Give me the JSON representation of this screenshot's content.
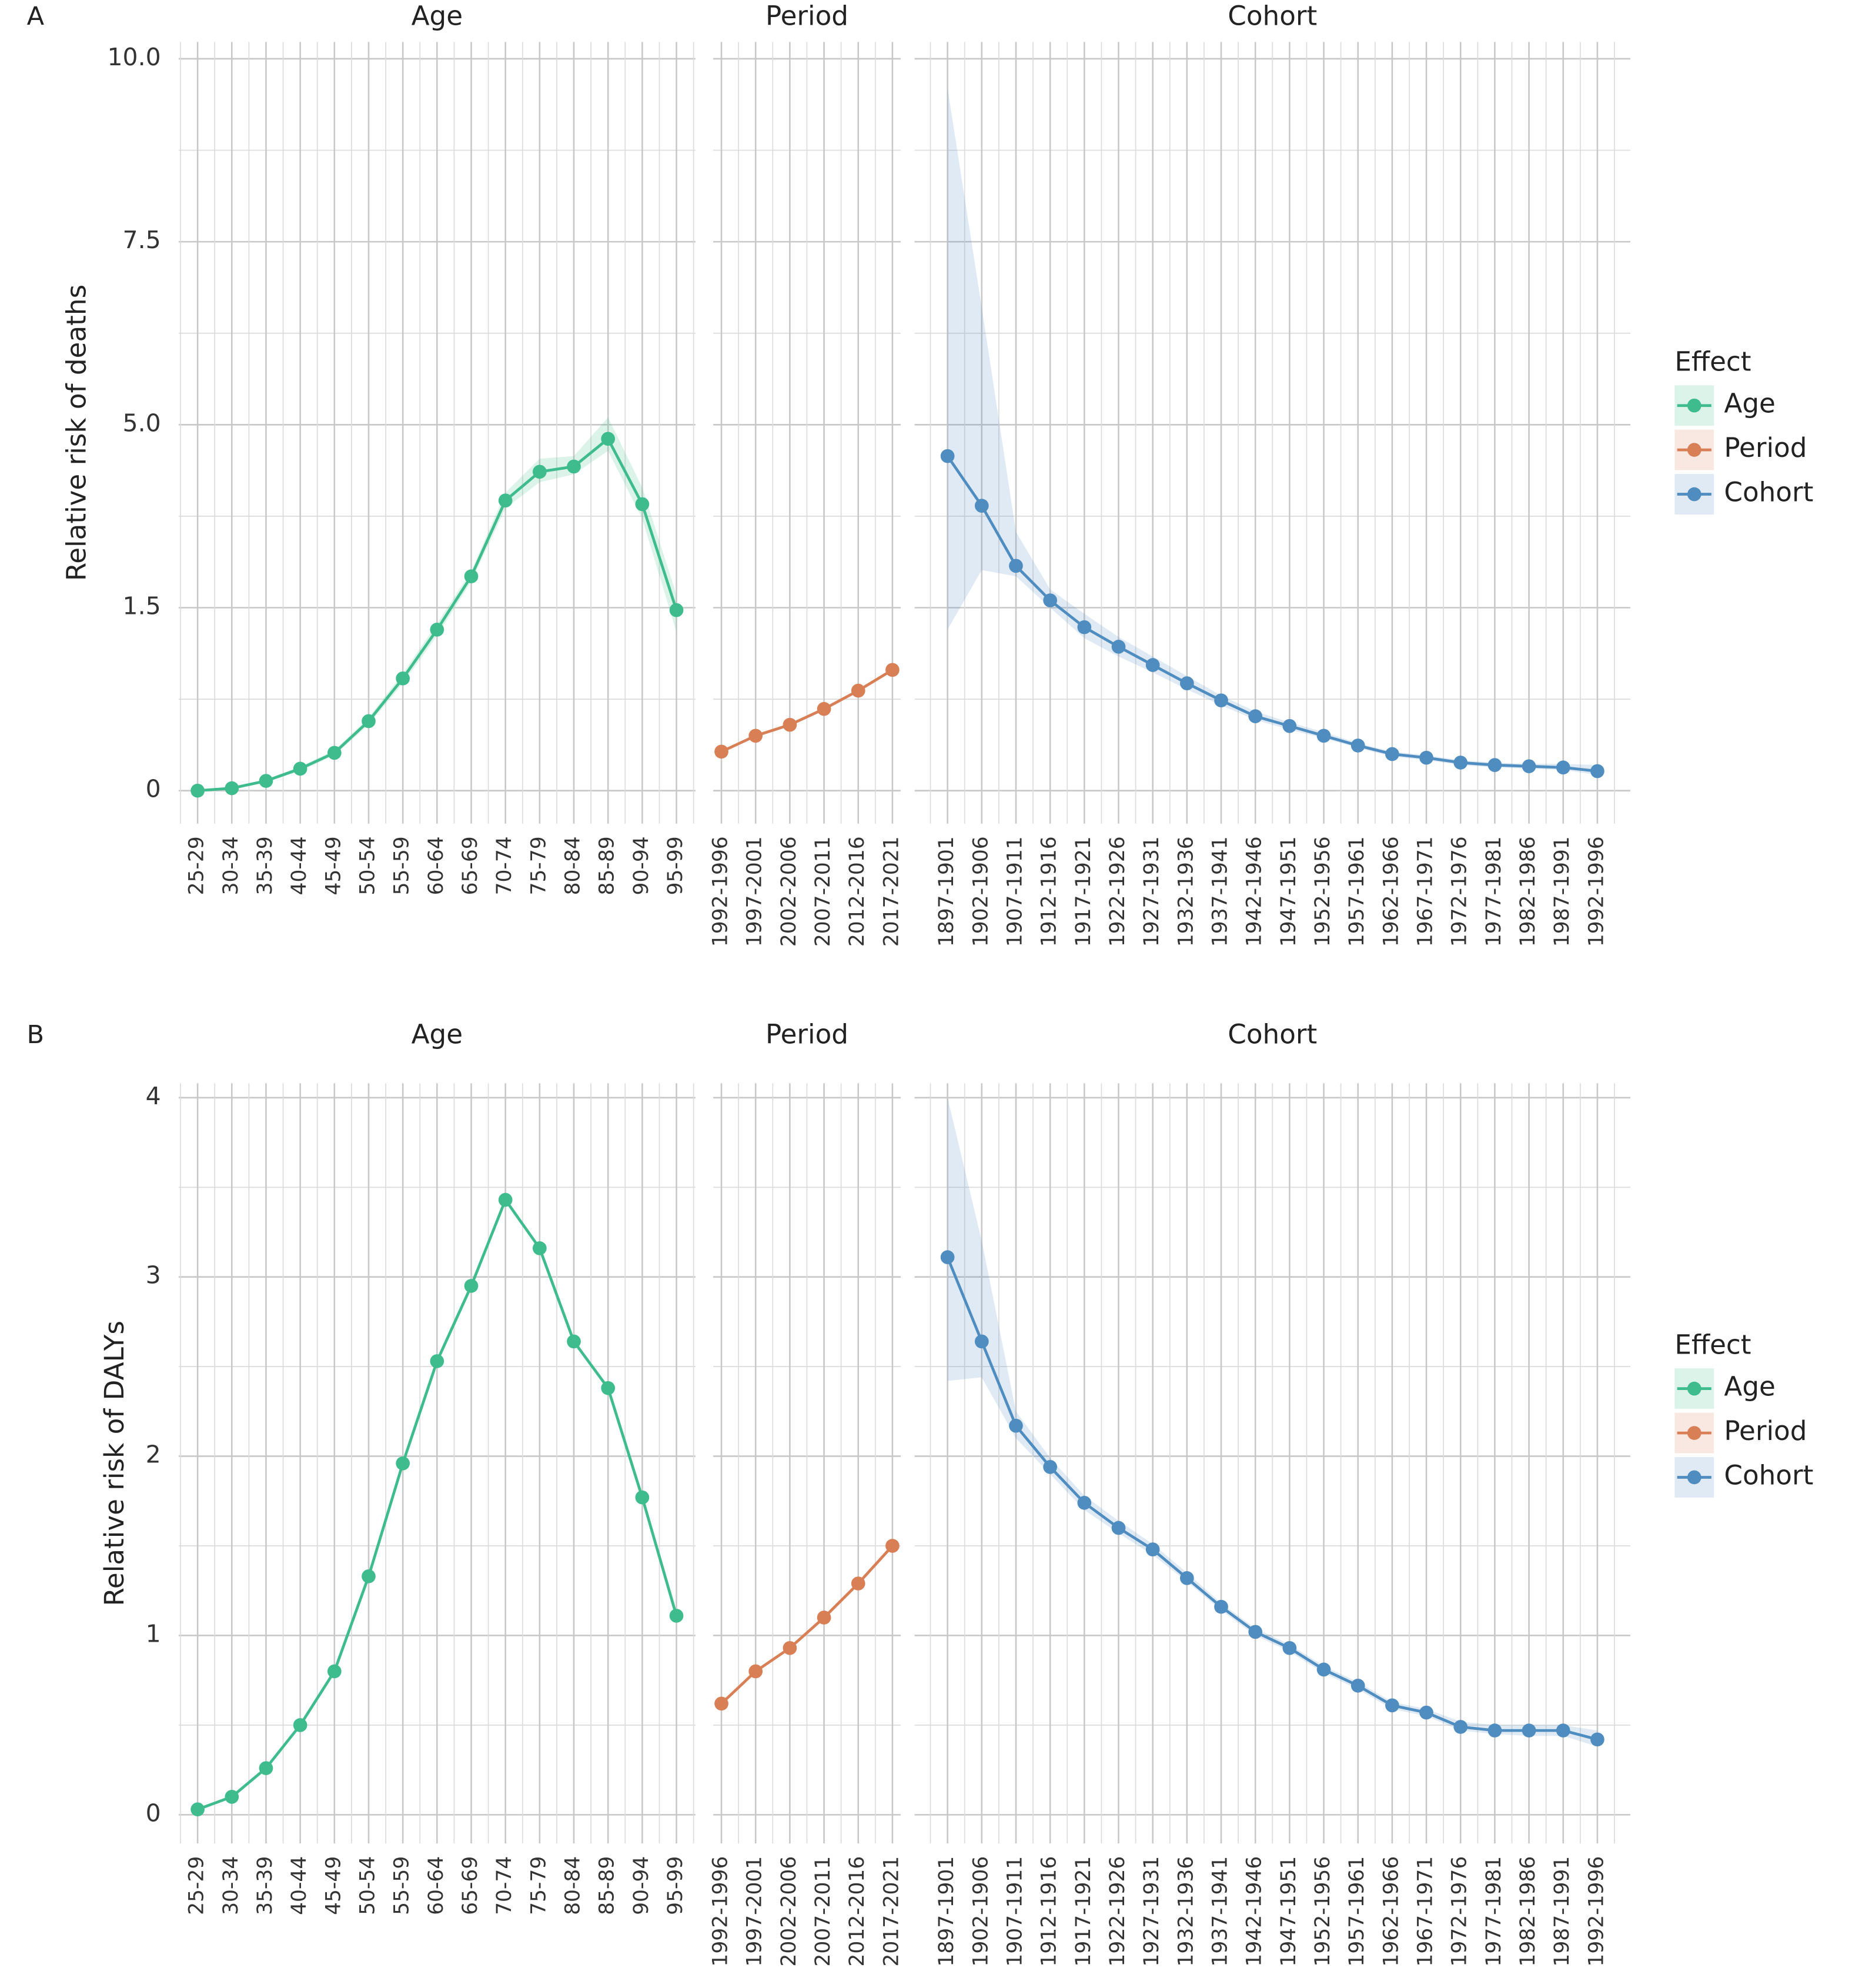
{
  "chart_data": [
    {
      "type": "line",
      "label": "A",
      "y_label": "Relative risk of deaths",
      "legend_title": "Effect",
      "grid": true,
      "ylim": [
        -0.27,
        10.23
      ],
      "yticks": [
        0,
        1.5,
        {
          "value": 5,
          "label": "5.0"
        },
        7.5,
        {
          "value": 10,
          "label": "10.0"
        }
      ],
      "facets": [
        {
          "title": "Age",
          "categories": [
            "25-29",
            "30-34",
            "35-39",
            "40-44",
            "45-49",
            "50-54",
            "55-59",
            "60-64",
            "65-69",
            "70-74",
            "75-79",
            "80-84",
            "85-89",
            "90-94",
            "95-99"
          ],
          "series": [
            {
              "name": "Age",
              "color": "#3fbc8d",
              "values": [
                0,
                0.02,
                0.08,
                0.18,
                0.31,
                0.57,
                0.92,
                1.32,
                2.1,
                3.55,
                4.1,
                4.2,
                4.73,
                3.48,
                1.48
              ],
              "lower": [
                0,
                0.01,
                0.07,
                0.16,
                0.29,
                0.54,
                0.88,
                1.27,
                2.0,
                3.4,
                3.9,
                4.05,
                4.5,
                3.2,
                1.3
              ],
              "upper": [
                0.01,
                0.03,
                0.09,
                0.2,
                0.33,
                0.6,
                0.96,
                1.37,
                2.2,
                3.7,
                4.35,
                4.4,
                5.1,
                3.8,
                1.75
              ]
            }
          ]
        },
        {
          "title": "Period",
          "categories": [
            "1992-1996",
            "1997-2001",
            "2002-2006",
            "2007-2011",
            "2012-2016",
            "2017-2021"
          ],
          "series": [
            {
              "name": "Period",
              "color": "#d87f56",
              "values": [
                0.32,
                0.45,
                0.54,
                0.67,
                0.82,
                0.99
              ]
            }
          ]
        },
        {
          "title": "Cohort",
          "categories": [
            "1897-1901",
            "1902-1906",
            "1907-1911",
            "1912-1916",
            "1917-1921",
            "1922-1926",
            "1927-1931",
            "1932-1936",
            "1937-1941",
            "1942-1946",
            "1947-1951",
            "1952-1956",
            "1957-1961",
            "1962-1966",
            "1967-1971",
            "1972-1976",
            "1977-1981",
            "1982-1986",
            "1987-1991",
            "1992-1996"
          ],
          "series": [
            {
              "name": "Cohort",
              "color": "#4f8dc0",
              "values": [
                4.4,
                3.45,
                2.3,
                1.64,
                1.34,
                1.18,
                1.03,
                0.88,
                0.74,
                0.61,
                0.53,
                0.45,
                0.37,
                0.3,
                0.27,
                0.23,
                0.21,
                0.2,
                0.19,
                0.16
              ],
              "lower": [
                1.32,
                2.22,
                2.1,
                1.5,
                1.25,
                1.1,
                0.97,
                0.83,
                0.7,
                0.58,
                0.5,
                0.43,
                0.35,
                0.28,
                0.25,
                0.21,
                0.19,
                0.18,
                0.17,
                0.13
              ],
              "upper": [
                9.6,
                6.6,
                2.95,
                1.85,
                1.45,
                1.26,
                1.1,
                0.94,
                0.78,
                0.65,
                0.56,
                0.48,
                0.39,
                0.32,
                0.29,
                0.25,
                0.23,
                0.22,
                0.22,
                0.21
              ]
            }
          ]
        }
      ]
    },
    {
      "type": "line",
      "label": "B",
      "y_label": "Relative risk of DALYs",
      "legend_title": "Effect",
      "grid": true,
      "ylim": [
        -0.16,
        4.08
      ],
      "yticks": [
        0,
        1,
        2,
        3,
        4
      ],
      "facets": [
        {
          "title": "Age",
          "categories": [
            "25-29",
            "30-34",
            "35-39",
            "40-44",
            "45-49",
            "50-54",
            "55-59",
            "60-64",
            "65-69",
            "70-74",
            "75-79",
            "80-84",
            "85-89",
            "90-94",
            "95-99"
          ],
          "series": [
            {
              "name": "Age",
              "color": "#3fbc8d",
              "values": [
                0.03,
                0.1,
                0.26,
                0.5,
                0.8,
                1.33,
                1.96,
                2.53,
                2.95,
                3.43,
                3.16,
                2.64,
                2.38,
                1.77,
                1.11
              ]
            }
          ]
        },
        {
          "title": "Period",
          "categories": [
            "1992-1996",
            "1997-2001",
            "2002-2006",
            "2007-2011",
            "2012-2016",
            "2017-2021"
          ],
          "series": [
            {
              "name": "Period",
              "color": "#d87f56",
              "values": [
                0.62,
                0.8,
                0.93,
                1.1,
                1.29,
                1.5
              ]
            }
          ]
        },
        {
          "title": "Cohort",
          "categories": [
            "1897-1901",
            "1902-1906",
            "1907-1911",
            "1912-1916",
            "1917-1921",
            "1922-1926",
            "1927-1931",
            "1932-1936",
            "1937-1941",
            "1942-1946",
            "1947-1951",
            "1952-1956",
            "1957-1961",
            "1962-1966",
            "1967-1971",
            "1972-1976",
            "1977-1981",
            "1982-1986",
            "1987-1991",
            "1992-1996"
          ],
          "series": [
            {
              "name": "Cohort",
              "color": "#4f8dc0",
              "values": [
                3.11,
                2.64,
                2.17,
                1.94,
                1.74,
                1.6,
                1.48,
                1.32,
                1.16,
                1.02,
                0.93,
                0.81,
                0.72,
                0.61,
                0.57,
                0.49,
                0.47,
                0.47,
                0.47,
                0.42
              ],
              "lower": [
                2.42,
                2.44,
                2.1,
                1.9,
                1.7,
                1.57,
                1.45,
                1.3,
                1.14,
                1.0,
                0.91,
                0.79,
                0.7,
                0.59,
                0.55,
                0.47,
                0.45,
                0.44,
                0.44,
                0.38
              ],
              "upper": [
                4.0,
                3.2,
                2.25,
                1.99,
                1.78,
                1.64,
                1.51,
                1.35,
                1.18,
                1.04,
                0.95,
                0.83,
                0.74,
                0.63,
                0.59,
                0.52,
                0.5,
                0.5,
                0.5,
                0.47
              ]
            }
          ]
        }
      ]
    }
  ]
}
